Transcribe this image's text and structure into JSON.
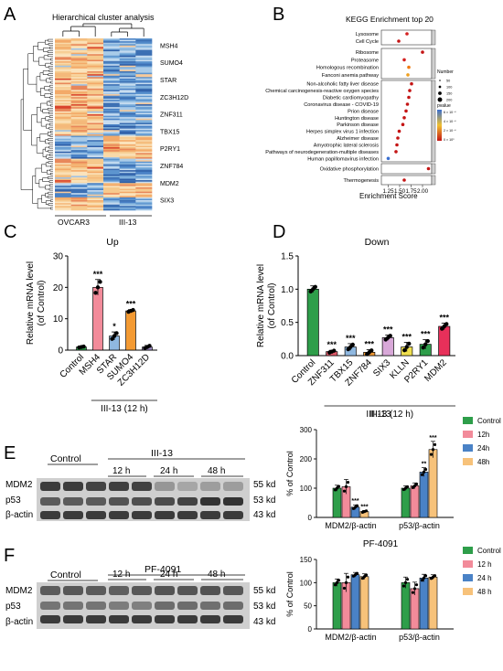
{
  "panel_letters": [
    "A",
    "B",
    "C",
    "D",
    "E",
    "F"
  ],
  "panelA": {
    "title": "Hierarchical cluster analysis",
    "genes": [
      "MSH4",
      "SUMO4",
      "STAR",
      "ZC3H12D",
      "ZNF311",
      "TBX15",
      "P2RY1",
      "ZNF784",
      "MDM2",
      "SIX3"
    ],
    "groups": [
      "OVCAR3",
      "III-13"
    ]
  },
  "panelB": {
    "title": "KEGG Enrichment top 20",
    "xlabel": "Enrichment Score",
    "legend_number_title": "Number",
    "legend_pvalue_title": "pvalue",
    "legend_pvalue_ticks": [
      "6 × 10⁻⁴",
      "4 × 10⁻⁴",
      "2 × 10⁻⁴",
      "0 × 10⁰"
    ]
  },
  "chart_data": [
    {
      "type": "scatter",
      "panel": "B",
      "title": "KEGG Enrichment top 20",
      "xlabel": "Enrichment Score",
      "xlim": [
        1.1,
        2.2
      ],
      "xticks": [
        "1.25",
        "1.50",
        "1.75",
        "2.00"
      ],
      "legend_size_ticks": [
        "50",
        "100",
        "150",
        "200"
      ],
      "groups": [
        {
          "terms": [
            "Lysosome",
            "Cell Cycle"
          ],
          "x": [
            1.66,
            1.48
          ],
          "color": [
            "#d42020",
            "#c41515"
          ]
        },
        {
          "terms": [
            "Ribosome",
            "Proteasome",
            "Homologous recombination",
            "Fanconi anemia pathway"
          ],
          "x": [
            2.0,
            1.6,
            1.7,
            1.68
          ],
          "color": [
            "#c41515",
            "#d42020",
            "#f07a10",
            "#f0a020"
          ]
        },
        {
          "terms": [
            "Non-alcoholic fatty liver disease",
            "Chemical carcinogenesis-reactive oxygen species",
            "Diabetic cardiomyopathy",
            "Coronavirus disease - COVID-19",
            "Prion disease",
            "Huntington disease",
            "Parkinson disease",
            "Herpes simplex virus 1 infection",
            "Alzheimer disease",
            "Amyotrophic lateral sclerosis",
            "Pathways of neurodegeneration-multiple diseases",
            "Human papillomavirus infection"
          ],
          "x": [
            1.76,
            1.72,
            1.7,
            1.67,
            1.64,
            1.6,
            1.57,
            1.49,
            1.46,
            1.44,
            1.42,
            1.25
          ],
          "color": [
            "#c41515",
            "#c41515",
            "#c41515",
            "#c41515",
            "#c41515",
            "#c41515",
            "#c41515",
            "#c41515",
            "#c41515",
            "#c41515",
            "#c41515",
            "#3a6fd0"
          ]
        },
        {
          "terms": [
            "Oxidative phosphorylation"
          ],
          "x": [
            2.13
          ],
          "color": [
            "#c41515"
          ]
        },
        {
          "terms": [
            "Thermogenesis"
          ],
          "x": [
            1.6
          ],
          "color": [
            "#c41515"
          ]
        }
      ]
    },
    {
      "type": "bar",
      "panel": "C",
      "title": "Up",
      "ylabel": "Relative mRNA level (of Control)",
      "xgroup": "III-13 (12 h)",
      "ylim": [
        0,
        30
      ],
      "yticks": [
        "0",
        "10",
        "20",
        "30"
      ],
      "categories": [
        "Control",
        "MSH4",
        "STAR",
        "SUMO4",
        "ZC3H12D"
      ],
      "values": [
        1,
        20,
        4.5,
        12.5,
        1
      ],
      "errors": [
        0.2,
        2.5,
        1.3,
        0.4,
        0.5
      ],
      "colors": [
        "#2e9e4a",
        "#f28b9a",
        "#8fb8e0",
        "#f39a33",
        "#a08ec7"
      ],
      "annotations": [
        "",
        "***",
        "*",
        "***",
        ""
      ]
    },
    {
      "type": "bar",
      "panel": "D",
      "title": "Down",
      "ylabel": "Relative mRNA level (of Control)",
      "xgroup": "III-13 (12 h)",
      "ylim": [
        0,
        1.5
      ],
      "yticks": [
        "0.0",
        "0.5",
        "1.0",
        "1.5"
      ],
      "categories": [
        "Control",
        "ZNF311",
        "TBX15",
        "ZNF784",
        "SIX3",
        "KLLN",
        "P2RY1",
        "MDM2"
      ],
      "values": [
        1.0,
        0.06,
        0.13,
        0.05,
        0.27,
        0.13,
        0.17,
        0.44
      ],
      "errors": [
        0.05,
        0.02,
        0.05,
        0.04,
        0.04,
        0.07,
        0.07,
        0.05
      ],
      "colors": [
        "#2e9e4a",
        "#e05a6a",
        "#8fb8e0",
        "#f39a33",
        "#d8a8d8",
        "#f0e050",
        "#2e9e4a",
        "#e8305a"
      ],
      "annotations": [
        "",
        "***",
        "***",
        "***",
        "***",
        "***",
        "***",
        "***"
      ]
    },
    {
      "type": "bar",
      "panel": "E",
      "title": "III-13",
      "ylabel": "% of Control",
      "ylim": [
        0,
        300
      ],
      "yticks": [
        "0",
        "100",
        "200",
        "300"
      ],
      "categories": [
        "MDM2/β-actin",
        "p53/β-actin"
      ],
      "series": [
        {
          "name": "Control",
          "values": [
            100,
            100
          ]
        },
        {
          "name": "12h",
          "values": [
            105,
            108
          ]
        },
        {
          "name": "24h",
          "values": [
            35,
            155
          ]
        },
        {
          "name": "48h",
          "values": [
            20,
            232
          ]
        }
      ],
      "errors": [
        [
          10,
          8
        ],
        [
          25,
          10
        ],
        [
          8,
          15
        ],
        [
          4,
          28
        ]
      ],
      "annotations": [
        [
          "",
          ""
        ],
        [
          "",
          ""
        ],
        [
          "***",
          "**"
        ],
        [
          "***",
          "***"
        ]
      ]
    },
    {
      "type": "bar",
      "panel": "F",
      "title": "PF-4091",
      "ylabel": "% of Control",
      "ylim": [
        0,
        150
      ],
      "yticks": [
        "0",
        "50",
        "100",
        "150"
      ],
      "categories": [
        "MDM2/β-actin",
        "p53/β-actin"
      ],
      "series": [
        {
          "name": "Control",
          "values": [
            100,
            100
          ]
        },
        {
          "name": "12 h",
          "values": [
            100,
            87
          ]
        },
        {
          "name": "24 h",
          "values": [
            117,
            110
          ]
        },
        {
          "name": "48 h",
          "values": [
            113,
            112
          ]
        }
      ],
      "errors": [
        [
          8,
          12
        ],
        [
          20,
          14
        ],
        [
          5,
          8
        ],
        [
          6,
          5
        ]
      ]
    }
  ],
  "legend_colors": [
    "#2e9e4a",
    "#f28b9a",
    "#4a82c6",
    "#f7c27a"
  ],
  "blotE": {
    "lanes_label": "Control",
    "treatment": "III-13",
    "timepoints": [
      "12 h",
      "24 h",
      "48 h"
    ],
    "rows": [
      "MDM2",
      "p53",
      "β-actin"
    ],
    "sizes": [
      "55 kd",
      "53 kd",
      "43 kd"
    ]
  },
  "blotF": {
    "lanes_label": "Control",
    "treatment": "PF-4091",
    "timepoints": [
      "12 h",
      "24 h",
      "48 h"
    ],
    "rows": [
      "MDM2",
      "p53",
      "β-actin"
    ],
    "sizes": [
      "55 kd",
      "53 kd",
      "43 kd"
    ]
  }
}
